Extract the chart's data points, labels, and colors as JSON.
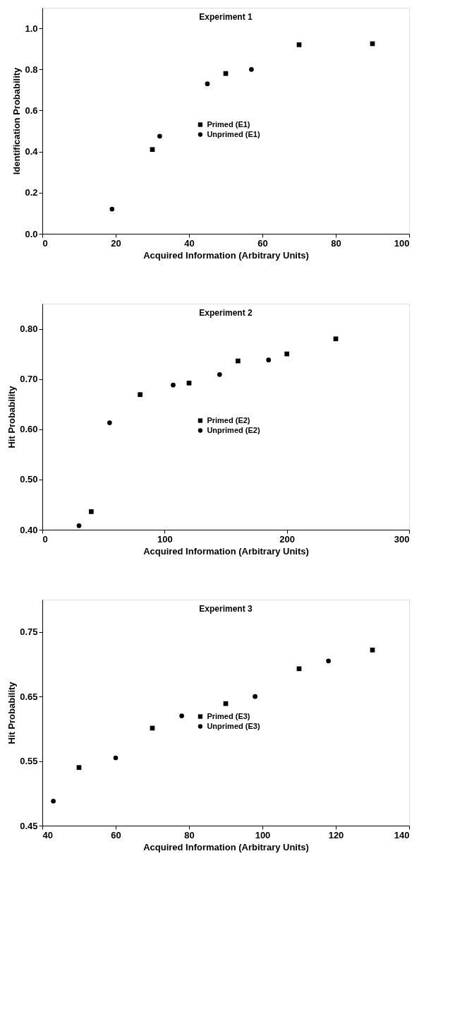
{
  "chart_data": [
    {
      "type": "scatter",
      "title": "Experiment 1",
      "xlabel": "Acquired Information (Arbitrary Units)",
      "ylabel": "Identification Probability",
      "xlim": [
        0,
        100
      ],
      "xticks": [
        0,
        20,
        40,
        60,
        80,
        100
      ],
      "ylim": [
        0,
        1.1
      ],
      "yticks": [
        {
          "value": 0,
          "label": "0.0"
        },
        {
          "value": 0.2,
          "label": "0.2"
        },
        {
          "value": 0.4,
          "label": "0.4"
        },
        {
          "value": 0.6,
          "label": "0.6"
        },
        {
          "value": 0.8,
          "label": "0.8"
        },
        {
          "value": 1.0,
          "label": "1.0"
        }
      ],
      "grid": false,
      "legend": "center",
      "series": [
        {
          "name": "Primed (E1)",
          "color": "#000000",
          "marker": "square",
          "x": [
            30,
            50,
            70,
            90
          ],
          "values": [
            0.41,
            0.78,
            0.92,
            0.925
          ]
        },
        {
          "name": "Unprimed (E1)",
          "color": "#000000",
          "marker": "circle",
          "x": [
            19,
            32,
            45,
            57
          ],
          "values": [
            0.12,
            0.475,
            0.73,
            0.8
          ]
        }
      ]
    },
    {
      "type": "scatter",
      "title": "Experiment 2",
      "xlabel": "Acquired Information (Arbitrary Units)",
      "ylabel": "Hit Probability",
      "xlim": [
        0,
        300
      ],
      "xticks": [
        0,
        100,
        200,
        300
      ],
      "ylim": [
        0.4,
        0.85
      ],
      "yticks": [
        {
          "value": 0.4,
          "label": "0.40"
        },
        {
          "value": 0.5,
          "label": "0.50"
        },
        {
          "value": 0.6,
          "label": "0.60"
        },
        {
          "value": 0.7,
          "label": "0.70"
        },
        {
          "value": 0.8,
          "label": "0.80"
        }
      ],
      "grid": false,
      "legend": "center",
      "series": [
        {
          "name": "Primed (E2)",
          "color": "#000000",
          "marker": "square",
          "x": [
            40,
            80,
            120,
            160,
            200,
            240
          ],
          "values": [
            0.436,
            0.669,
            0.692,
            0.736,
            0.75,
            0.78
          ]
        },
        {
          "name": "Unprimed (E2)",
          "color": "#000000",
          "marker": "circle",
          "x": [
            30,
            55,
            107,
            145,
            185
          ],
          "values": [
            0.408,
            0.613,
            0.688,
            0.709,
            0.738
          ]
        }
      ]
    },
    {
      "type": "scatter",
      "title": "Experiment 3",
      "xlabel": "Acquired Information (Arbitrary Units)",
      "ylabel": "Hit Probability",
      "xlim": [
        40,
        140
      ],
      "xticks": [
        40,
        60,
        80,
        100,
        120,
        140
      ],
      "ylim": [
        0.45,
        0.8
      ],
      "yticks": [
        0.45,
        0.55,
        0.65,
        0.75
      ],
      "grid": false,
      "legend": "center",
      "series": [
        {
          "name": "Primed (E3)",
          "color": "#000000",
          "marker": "square",
          "x": [
            50,
            70,
            90,
            110,
            130
          ],
          "values": [
            0.54,
            0.601,
            0.639,
            0.693,
            0.722
          ]
        },
        {
          "name": "Unprimed (E3)",
          "color": "#000000",
          "marker": "circle",
          "x": [
            43,
            60,
            78,
            98,
            118
          ],
          "values": [
            0.488,
            0.555,
            0.62,
            0.65,
            0.705
          ]
        }
      ]
    }
  ]
}
